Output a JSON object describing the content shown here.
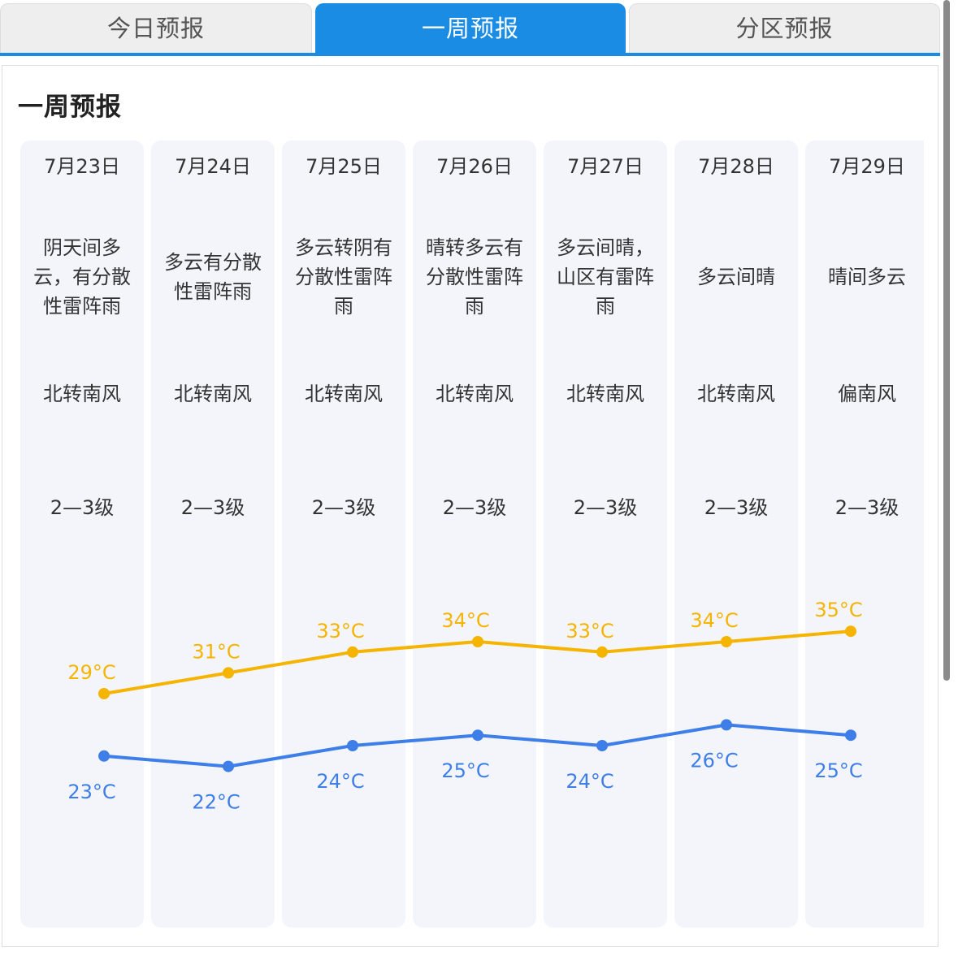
{
  "tabs": [
    {
      "label": "今日预报",
      "active": false
    },
    {
      "label": "一周预报",
      "active": true
    },
    {
      "label": "分区预报",
      "active": false
    }
  ],
  "section_title": "一周预报",
  "days": [
    {
      "date": "7月23日",
      "desc": "阴天间多云，有分散性雷阵雨",
      "wind": "北转南风",
      "level": "2—3级"
    },
    {
      "date": "7月24日",
      "desc": "多云有分散性雷阵雨",
      "wind": "北转南风",
      "level": "2—3级"
    },
    {
      "date": "7月25日",
      "desc": "多云转阴有分散性雷阵雨",
      "wind": "北转南风",
      "level": "2—3级"
    },
    {
      "date": "7月26日",
      "desc": "晴转多云有分散性雷阵雨",
      "wind": "北转南风",
      "level": "2—3级"
    },
    {
      "date": "7月27日",
      "desc": "多云间晴，山区有雷阵雨",
      "wind": "北转南风",
      "level": "2—3级"
    },
    {
      "date": "7月28日",
      "desc": "多云间晴",
      "wind": "北转南风",
      "level": "2—3级"
    },
    {
      "date": "7月29日",
      "desc": "晴间多云",
      "wind": "偏南风",
      "level": "2—3级"
    }
  ],
  "chart_data": {
    "type": "line",
    "categories": [
      "7月23日",
      "7月24日",
      "7月25日",
      "7月26日",
      "7月27日",
      "7月28日",
      "7月29日"
    ],
    "unit": "°C",
    "series": [
      {
        "key": "high",
        "values": [
          29,
          31,
          33,
          34,
          33,
          34,
          35
        ],
        "labels": [
          "29°C",
          "31°C",
          "33°C",
          "34°C",
          "33°C",
          "34°C",
          "35°C"
        ],
        "color": "#f5b400",
        "label_position": "above"
      },
      {
        "key": "low",
        "values": [
          23,
          22,
          24,
          25,
          24,
          26,
          25
        ],
        "labels": [
          "23°C",
          "22°C",
          "24°C",
          "25°C",
          "24°C",
          "26°C",
          "25°C"
        ],
        "color": "#3d7ee8",
        "label_position": "below"
      }
    ]
  },
  "colors": {
    "accent": "#1b8ce3",
    "column_bg": "#f3f5fa",
    "high": "#f5b400",
    "low": "#3d7ee8"
  }
}
